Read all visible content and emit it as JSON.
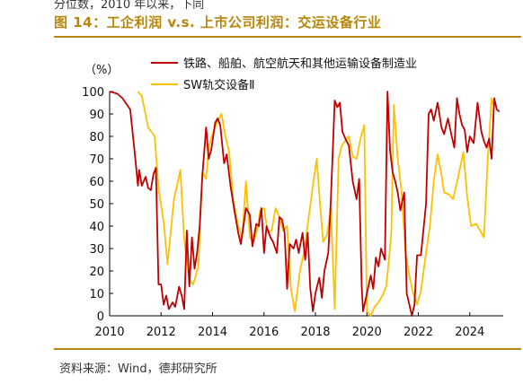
{
  "top_note": "分位数，2010 年以来，下同",
  "figure_title": "图 14：工企利润 v.s. 上市公司利润：交运设备行业",
  "source": "资料来源：Wind，德邦研究所",
  "colors": {
    "accent": "#b8860b",
    "series_red": "#c00000",
    "series_yellow": "#ffc000"
  },
  "chart_data": {
    "type": "line",
    "unit_label": "（%）",
    "ylim": [
      0,
      100
    ],
    "yticks": [
      0,
      10,
      20,
      30,
      40,
      50,
      60,
      70,
      80,
      90,
      100
    ],
    "xlim": [
      2010,
      2025.3
    ],
    "xticks": [
      2010,
      2012,
      2014,
      2016,
      2018,
      2020,
      2022,
      2024
    ],
    "grid": false,
    "legend_position": "top-right",
    "series": [
      {
        "name": "铁路、船舶、航空航天和其他运输设备制造业",
        "color": "#c00000",
        "points": [
          [
            2010.0,
            100
          ],
          [
            2010.3,
            99
          ],
          [
            2010.5,
            97
          ],
          [
            2010.8,
            92
          ],
          [
            2011.0,
            70
          ],
          [
            2011.1,
            58
          ],
          [
            2011.15,
            65
          ],
          [
            2011.25,
            58
          ],
          [
            2011.4,
            62
          ],
          [
            2011.5,
            57
          ],
          [
            2011.6,
            56
          ],
          [
            2011.7,
            63
          ],
          [
            2011.8,
            66
          ],
          [
            2011.9,
            14
          ],
          [
            2012.0,
            14
          ],
          [
            2012.1,
            5
          ],
          [
            2012.2,
            9
          ],
          [
            2012.3,
            3
          ],
          [
            2012.45,
            6
          ],
          [
            2012.55,
            4
          ],
          [
            2012.7,
            13
          ],
          [
            2012.8,
            9
          ],
          [
            2012.9,
            3
          ],
          [
            2013.0,
            38
          ],
          [
            2013.1,
            13
          ],
          [
            2013.2,
            35
          ],
          [
            2013.3,
            21
          ],
          [
            2013.4,
            28
          ],
          [
            2013.5,
            40
          ],
          [
            2013.6,
            62
          ],
          [
            2013.75,
            84
          ],
          [
            2013.85,
            70
          ],
          [
            2013.95,
            74
          ],
          [
            2014.1,
            86
          ],
          [
            2014.2,
            88
          ],
          [
            2014.3,
            85
          ],
          [
            2014.45,
            68
          ],
          [
            2014.55,
            72
          ],
          [
            2014.7,
            58
          ],
          [
            2014.85,
            47
          ],
          [
            2015.0,
            37
          ],
          [
            2015.1,
            32
          ],
          [
            2015.2,
            40
          ],
          [
            2015.3,
            48
          ],
          [
            2015.45,
            45
          ],
          [
            2015.55,
            31
          ],
          [
            2015.7,
            41
          ],
          [
            2015.8,
            40
          ],
          [
            2015.9,
            48
          ],
          [
            2016.0,
            28
          ],
          [
            2016.1,
            40
          ],
          [
            2016.25,
            35
          ],
          [
            2016.35,
            33
          ],
          [
            2016.5,
            28
          ],
          [
            2016.6,
            44
          ],
          [
            2016.7,
            43
          ],
          [
            2016.8,
            37
          ],
          [
            2016.9,
            12
          ],
          [
            2017.0,
            32
          ],
          [
            2017.15,
            30
          ],
          [
            2017.25,
            34
          ],
          [
            2017.35,
            28
          ],
          [
            2017.5,
            37
          ],
          [
            2017.6,
            25
          ],
          [
            2017.7,
            37
          ],
          [
            2017.8,
            12
          ],
          [
            2017.9,
            2
          ],
          [
            2018.0,
            10
          ],
          [
            2018.15,
            17
          ],
          [
            2018.25,
            8
          ],
          [
            2018.35,
            20
          ],
          [
            2018.5,
            28
          ],
          [
            2018.6,
            52
          ],
          [
            2018.75,
            96
          ],
          [
            2018.85,
            93
          ],
          [
            2018.95,
            95
          ],
          [
            2019.05,
            82
          ],
          [
            2019.2,
            78
          ],
          [
            2019.3,
            76
          ],
          [
            2019.45,
            60
          ],
          [
            2019.6,
            52
          ],
          [
            2019.7,
            61
          ],
          [
            2019.8,
            13
          ],
          [
            2019.85,
            2
          ],
          [
            2020.0,
            10
          ],
          [
            2020.15,
            18
          ],
          [
            2020.25,
            12
          ],
          [
            2020.35,
            26
          ],
          [
            2020.45,
            22
          ],
          [
            2020.55,
            30
          ],
          [
            2020.7,
            25
          ],
          [
            2020.8,
            100
          ],
          [
            2020.9,
            74
          ],
          [
            2021.0,
            64
          ],
          [
            2021.1,
            60
          ],
          [
            2021.2,
            55
          ],
          [
            2021.3,
            47
          ],
          [
            2021.45,
            55
          ],
          [
            2021.55,
            10
          ],
          [
            2021.65,
            5
          ],
          [
            2021.75,
            0
          ],
          [
            2021.85,
            5
          ],
          [
            2021.95,
            27
          ],
          [
            2022.1,
            27
          ],
          [
            2022.3,
            50
          ],
          [
            2022.4,
            90
          ],
          [
            2022.5,
            92
          ],
          [
            2022.6,
            87
          ],
          [
            2022.75,
            95
          ],
          [
            2022.9,
            84
          ],
          [
            2023.0,
            81
          ],
          [
            2023.15,
            88
          ],
          [
            2023.3,
            80
          ],
          [
            2023.4,
            75
          ],
          [
            2023.5,
            97
          ],
          [
            2023.6,
            90
          ],
          [
            2023.7,
            85
          ],
          [
            2023.8,
            83
          ],
          [
            2023.9,
            73
          ],
          [
            2024.0,
            80
          ],
          [
            2024.15,
            77
          ],
          [
            2024.3,
            95
          ],
          [
            2024.45,
            82
          ],
          [
            2024.55,
            78
          ],
          [
            2024.65,
            75
          ],
          [
            2024.75,
            79
          ],
          [
            2024.85,
            70
          ],
          [
            2024.95,
            97
          ],
          [
            2025.05,
            92
          ],
          [
            2025.15,
            91
          ]
        ]
      },
      {
        "name": "SW轨交设备Ⅱ",
        "color": "#ffc000",
        "points": [
          [
            2011.1,
            100
          ],
          [
            2011.25,
            98
          ],
          [
            2011.5,
            84
          ],
          [
            2011.75,
            80
          ],
          [
            2011.9,
            57
          ],
          [
            2012.1,
            42
          ],
          [
            2012.25,
            23
          ],
          [
            2012.5,
            52
          ],
          [
            2012.75,
            65
          ],
          [
            2012.9,
            34
          ],
          [
            2013.1,
            16
          ],
          [
            2013.25,
            14
          ],
          [
            2013.45,
            22
          ],
          [
            2013.6,
            64
          ],
          [
            2013.75,
            61
          ],
          [
            2013.85,
            75
          ],
          [
            2014.0,
            81
          ],
          [
            2014.2,
            87
          ],
          [
            2014.35,
            90
          ],
          [
            2014.5,
            80
          ],
          [
            2014.65,
            73
          ],
          [
            2014.8,
            52
          ],
          [
            2015.0,
            40
          ],
          [
            2015.15,
            35
          ],
          [
            2015.3,
            60
          ],
          [
            2015.45,
            35
          ],
          [
            2015.6,
            33
          ],
          [
            2015.75,
            39
          ],
          [
            2015.85,
            47
          ],
          [
            2016.0,
            48
          ],
          [
            2016.15,
            37
          ],
          [
            2016.3,
            38
          ],
          [
            2016.45,
            48
          ],
          [
            2016.6,
            44
          ],
          [
            2016.75,
            38
          ],
          [
            2016.9,
            40
          ],
          [
            2017.05,
            12
          ],
          [
            2017.2,
            2
          ],
          [
            2017.4,
            20
          ],
          [
            2017.55,
            28
          ],
          [
            2017.75,
            45
          ],
          [
            2017.9,
            58
          ],
          [
            2018.05,
            70
          ],
          [
            2018.2,
            47
          ],
          [
            2018.3,
            33
          ],
          [
            2018.45,
            36
          ],
          [
            2018.6,
            48
          ],
          [
            2018.75,
            3
          ],
          [
            2018.9,
            70
          ],
          [
            2019.0,
            75
          ],
          [
            2019.15,
            78
          ],
          [
            2019.3,
            80
          ],
          [
            2019.45,
            71
          ],
          [
            2019.6,
            70
          ],
          [
            2019.75,
            79
          ],
          [
            2019.9,
            85
          ],
          [
            2020.0,
            2
          ],
          [
            2020.15,
            0
          ],
          [
            2020.3,
            4
          ],
          [
            2020.45,
            6
          ],
          [
            2020.6,
            9
          ],
          [
            2020.75,
            13
          ],
          [
            2020.85,
            24
          ],
          [
            2020.95,
            37
          ],
          [
            2021.05,
            94
          ],
          [
            2021.2,
            70
          ],
          [
            2021.35,
            55
          ],
          [
            2021.5,
            28
          ],
          [
            2021.65,
            18
          ],
          [
            2021.8,
            10
          ],
          [
            2021.95,
            5
          ],
          [
            2022.1,
            11
          ],
          [
            2022.3,
            28
          ],
          [
            2022.45,
            40
          ],
          [
            2022.6,
            60
          ],
          [
            2022.75,
            72
          ],
          [
            2022.9,
            63
          ],
          [
            2023.0,
            55
          ],
          [
            2023.2,
            54
          ],
          [
            2023.35,
            52
          ],
          [
            2023.55,
            62
          ],
          [
            2023.75,
            73
          ],
          [
            2023.9,
            53
          ],
          [
            2024.05,
            40
          ],
          [
            2024.25,
            41
          ],
          [
            2024.45,
            37
          ],
          [
            2024.55,
            35
          ],
          [
            2024.7,
            70
          ],
          [
            2024.85,
            97
          ],
          [
            2024.95,
            93
          ]
        ]
      }
    ]
  }
}
